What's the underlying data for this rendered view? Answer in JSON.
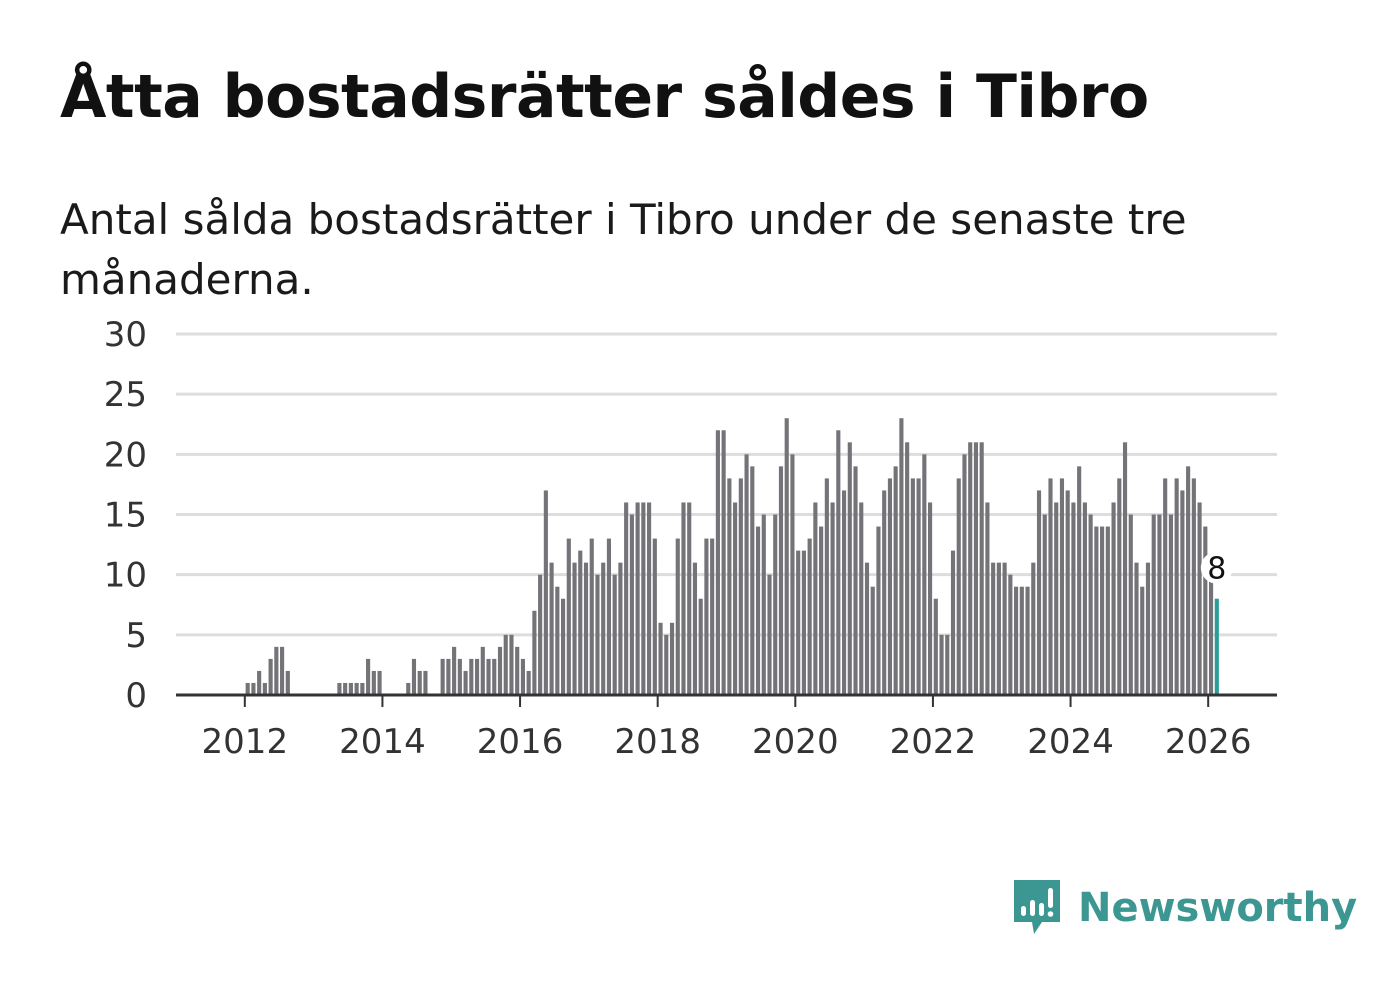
{
  "title": "Åtta bostadsrätter såldes i Tibro",
  "subtitle": "Antal sålda bostadsrätter i Tibro under de senaste tre månaderna.",
  "brand": {
    "name": "Newsworthy",
    "color": "#3c9793",
    "icon": "newsworthy-logo-icon"
  },
  "colors": {
    "bar": "#747378",
    "highlight": "#2a9d96",
    "grid": "#dddddd",
    "axis": "#333333"
  },
  "chart_data": {
    "type": "bar",
    "title": "Åtta bostadsrätter såldes i Tibro",
    "xlabel": "",
    "ylabel": "",
    "ylim": [
      0,
      30
    ],
    "yticks": [
      0,
      5,
      10,
      15,
      20,
      25,
      30
    ],
    "xticks": [
      "2012",
      "2014",
      "2016",
      "2018",
      "2020",
      "2022",
      "2024",
      "2026"
    ],
    "x_start": "2011-01",
    "x_end": "2026-12",
    "first_month": "2011-11",
    "grid": true,
    "highlight_label": "8",
    "series": [
      {
        "name": "Antal sålda bostadsrätter",
        "values": [
          0,
          0,
          1,
          1,
          2,
          1,
          3,
          4,
          4,
          2,
          0,
          0,
          0,
          0,
          0,
          0,
          0,
          0,
          1,
          1,
          1,
          1,
          1,
          3,
          2,
          2,
          0,
          0,
          0,
          0,
          1,
          3,
          2,
          2,
          0,
          0,
          3,
          3,
          4,
          3,
          2,
          3,
          3,
          4,
          3,
          3,
          4,
          5,
          5,
          4,
          3,
          2,
          7,
          10,
          17,
          11,
          9,
          8,
          13,
          11,
          12,
          11,
          13,
          10,
          11,
          13,
          10,
          11,
          16,
          15,
          16,
          16,
          16,
          13,
          6,
          5,
          6,
          13,
          16,
          16,
          11,
          8,
          13,
          13,
          22,
          22,
          18,
          16,
          18,
          20,
          19,
          14,
          15,
          10,
          15,
          19,
          23,
          20,
          12,
          12,
          13,
          16,
          14,
          18,
          16,
          22,
          17,
          21,
          19,
          16,
          11,
          9,
          14,
          17,
          18,
          19,
          23,
          21,
          18,
          18,
          20,
          16,
          8,
          5,
          5,
          12,
          18,
          20,
          21,
          21,
          21,
          16,
          11,
          11,
          11,
          10,
          9,
          9,
          9,
          11,
          17,
          15,
          18,
          16,
          18,
          17,
          16,
          19,
          16,
          15,
          14,
          14,
          14,
          16,
          18,
          21,
          15,
          11,
          9,
          11,
          15,
          15,
          18,
          15,
          18,
          17,
          19,
          18,
          16,
          14,
          10,
          8
        ]
      }
    ]
  }
}
